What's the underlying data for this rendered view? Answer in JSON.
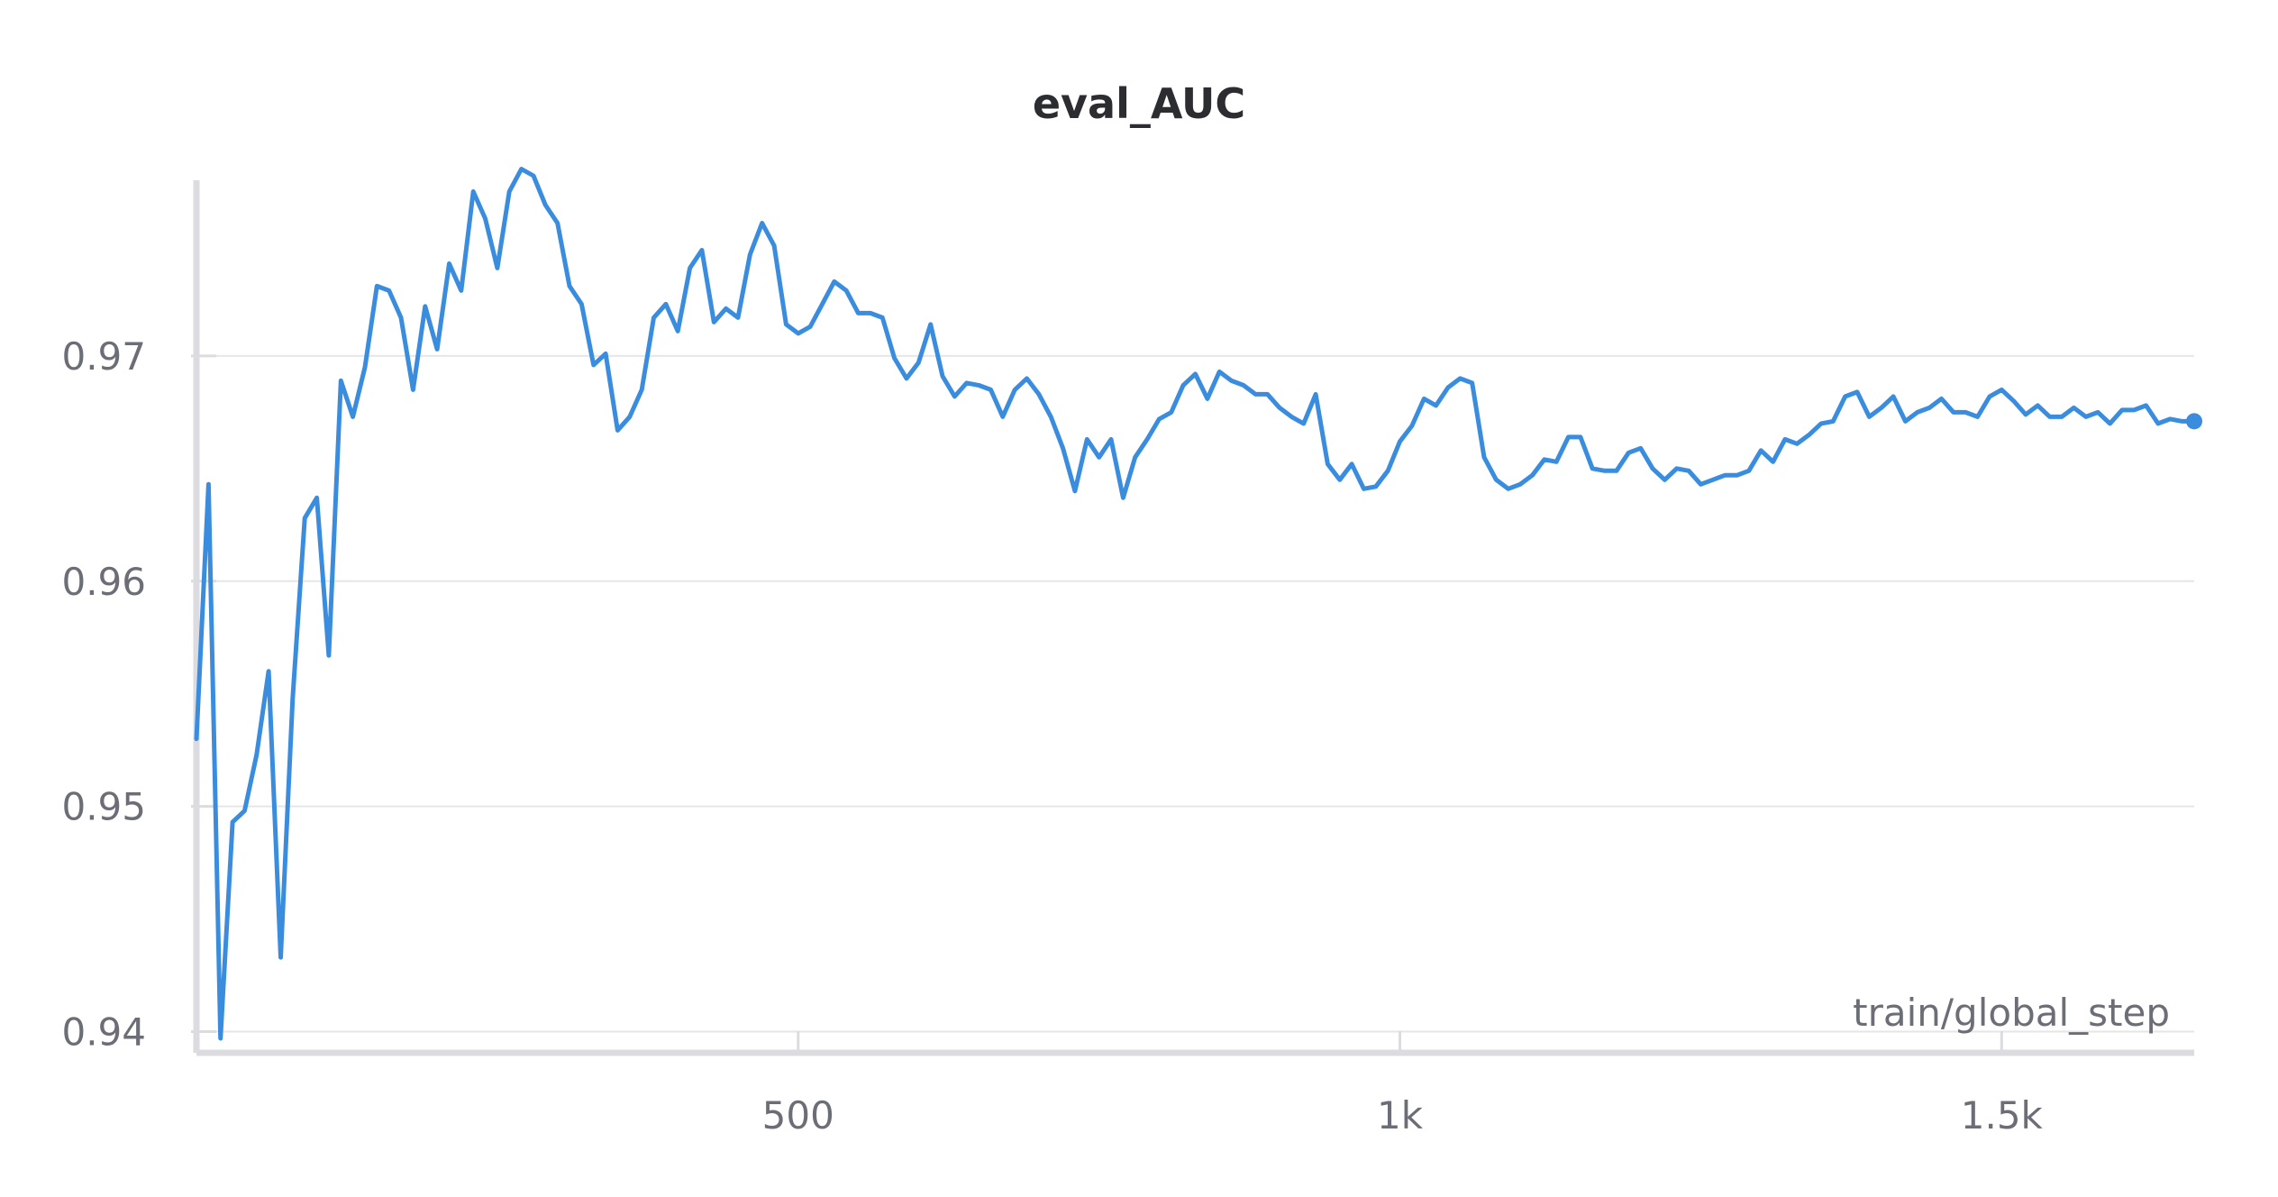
{
  "chart_data": {
    "type": "line",
    "title": "eval_AUC",
    "xlabel": "train/global_step",
    "ylabel": "",
    "xlim": [
      0,
      1660
    ],
    "ylim": [
      0.9393,
      0.9778
    ],
    "x_ticks": [
      {
        "value": 500,
        "label": "500"
      },
      {
        "value": 1000,
        "label": "1k"
      },
      {
        "value": 1500,
        "label": "1.5k"
      }
    ],
    "y_ticks": [
      {
        "value": 0.94,
        "label": "0.94"
      },
      {
        "value": 0.95,
        "label": "0.95"
      },
      {
        "value": 0.96,
        "label": "0.96"
      },
      {
        "value": 0.97,
        "label": "0.97"
      }
    ],
    "grid": true,
    "series": [
      {
        "color": "#3a8dde",
        "x": [
          0,
          10,
          20,
          30,
          40,
          50,
          60,
          70,
          80,
          90,
          100,
          110,
          120,
          130,
          140,
          150,
          160,
          170,
          180,
          190,
          200,
          210,
          220,
          230,
          240,
          250,
          260,
          270,
          280,
          290,
          300,
          310,
          320,
          330,
          340,
          350,
          360,
          370,
          380,
          390,
          400,
          410,
          420,
          430,
          440,
          450,
          460,
          470,
          480,
          490,
          500,
          510,
          520,
          530,
          540,
          550,
          560,
          570,
          580,
          590,
          600,
          610,
          620,
          630,
          640,
          650,
          660,
          670,
          680,
          690,
          700,
          710,
          720,
          730,
          740,
          750,
          760,
          770,
          780,
          790,
          800,
          810,
          820,
          830,
          840,
          850,
          860,
          870,
          880,
          890,
          900,
          910,
          920,
          930,
          940,
          950,
          960,
          970,
          980,
          990,
          1000,
          1010,
          1020,
          1030,
          1040,
          1050,
          1060,
          1070,
          1080,
          1090,
          1100,
          1110,
          1120,
          1130,
          1140,
          1150,
          1160,
          1170,
          1180,
          1190,
          1200,
          1210,
          1220,
          1230,
          1240,
          1250,
          1260,
          1270,
          1280,
          1290,
          1300,
          1310,
          1320,
          1330,
          1340,
          1350,
          1360,
          1370,
          1380,
          1390,
          1400,
          1410,
          1420,
          1430,
          1440,
          1450,
          1460,
          1470,
          1480,
          1490,
          1500,
          1510,
          1520,
          1530,
          1540,
          1550,
          1560,
          1570,
          1580,
          1590,
          1600,
          1610,
          1620,
          1630,
          1640,
          1650,
          1660
        ],
        "y": [
          0.953,
          0.9643,
          0.9397,
          0.9493,
          0.9498,
          0.9523,
          0.956,
          0.9433,
          0.9548,
          0.9628,
          0.9637,
          0.9567,
          0.9689,
          0.9673,
          0.9695,
          0.9731,
          0.9729,
          0.9717,
          0.9685,
          0.9722,
          0.9703,
          0.9741,
          0.9729,
          0.9773,
          0.9761,
          0.9739,
          0.9773,
          0.9783,
          0.978,
          0.9767,
          0.9759,
          0.9731,
          0.9723,
          0.9696,
          0.9701,
          0.9667,
          0.9673,
          0.9685,
          0.9717,
          0.9723,
          0.9711,
          0.9739,
          0.9747,
          0.9715,
          0.9721,
          0.9717,
          0.9745,
          0.9759,
          0.9749,
          0.9714,
          0.971,
          0.9713,
          0.9723,
          0.9733,
          0.9729,
          0.9719,
          0.9719,
          0.9717,
          0.9699,
          0.969,
          0.9697,
          0.9714,
          0.9691,
          0.9682,
          0.9688,
          0.9687,
          0.9685,
          0.9673,
          0.9685,
          0.969,
          0.9683,
          0.9673,
          0.9659,
          0.964,
          0.9663,
          0.9655,
          0.9663,
          0.9637,
          0.9655,
          0.9663,
          0.9672,
          0.9675,
          0.9687,
          0.9692,
          0.9681,
          0.9693,
          0.9689,
          0.9687,
          0.9683,
          0.9683,
          0.9677,
          0.9673,
          0.967,
          0.9683,
          0.9652,
          0.9645,
          0.9652,
          0.9641,
          0.9642,
          0.9649,
          0.9662,
          0.9669,
          0.9681,
          0.9678,
          0.9686,
          0.969,
          0.9688,
          0.9655,
          0.9645,
          0.9641,
          0.9643,
          0.9647,
          0.9654,
          0.9653,
          0.9664,
          0.9664,
          0.965,
          0.9649,
          0.9649,
          0.9657,
          0.9659,
          0.965,
          0.9645,
          0.965,
          0.9649,
          0.9643,
          0.9645,
          0.9647,
          0.9647,
          0.9649,
          0.9658,
          0.9653,
          0.9663,
          0.9661,
          0.9665,
          0.967,
          0.9671,
          0.9682,
          0.9684,
          0.9673,
          0.9677,
          0.9682,
          0.9671,
          0.9675,
          0.9677,
          0.9681,
          0.9675,
          0.9675,
          0.9673,
          0.9682,
          0.9685,
          0.968,
          0.9674,
          0.9678,
          0.9673,
          0.9673,
          0.9677,
          0.9673,
          0.9675,
          0.967,
          0.9676,
          0.9676,
          0.9678,
          0.967,
          0.9672,
          0.9671,
          0.9671
        ]
      }
    ]
  }
}
